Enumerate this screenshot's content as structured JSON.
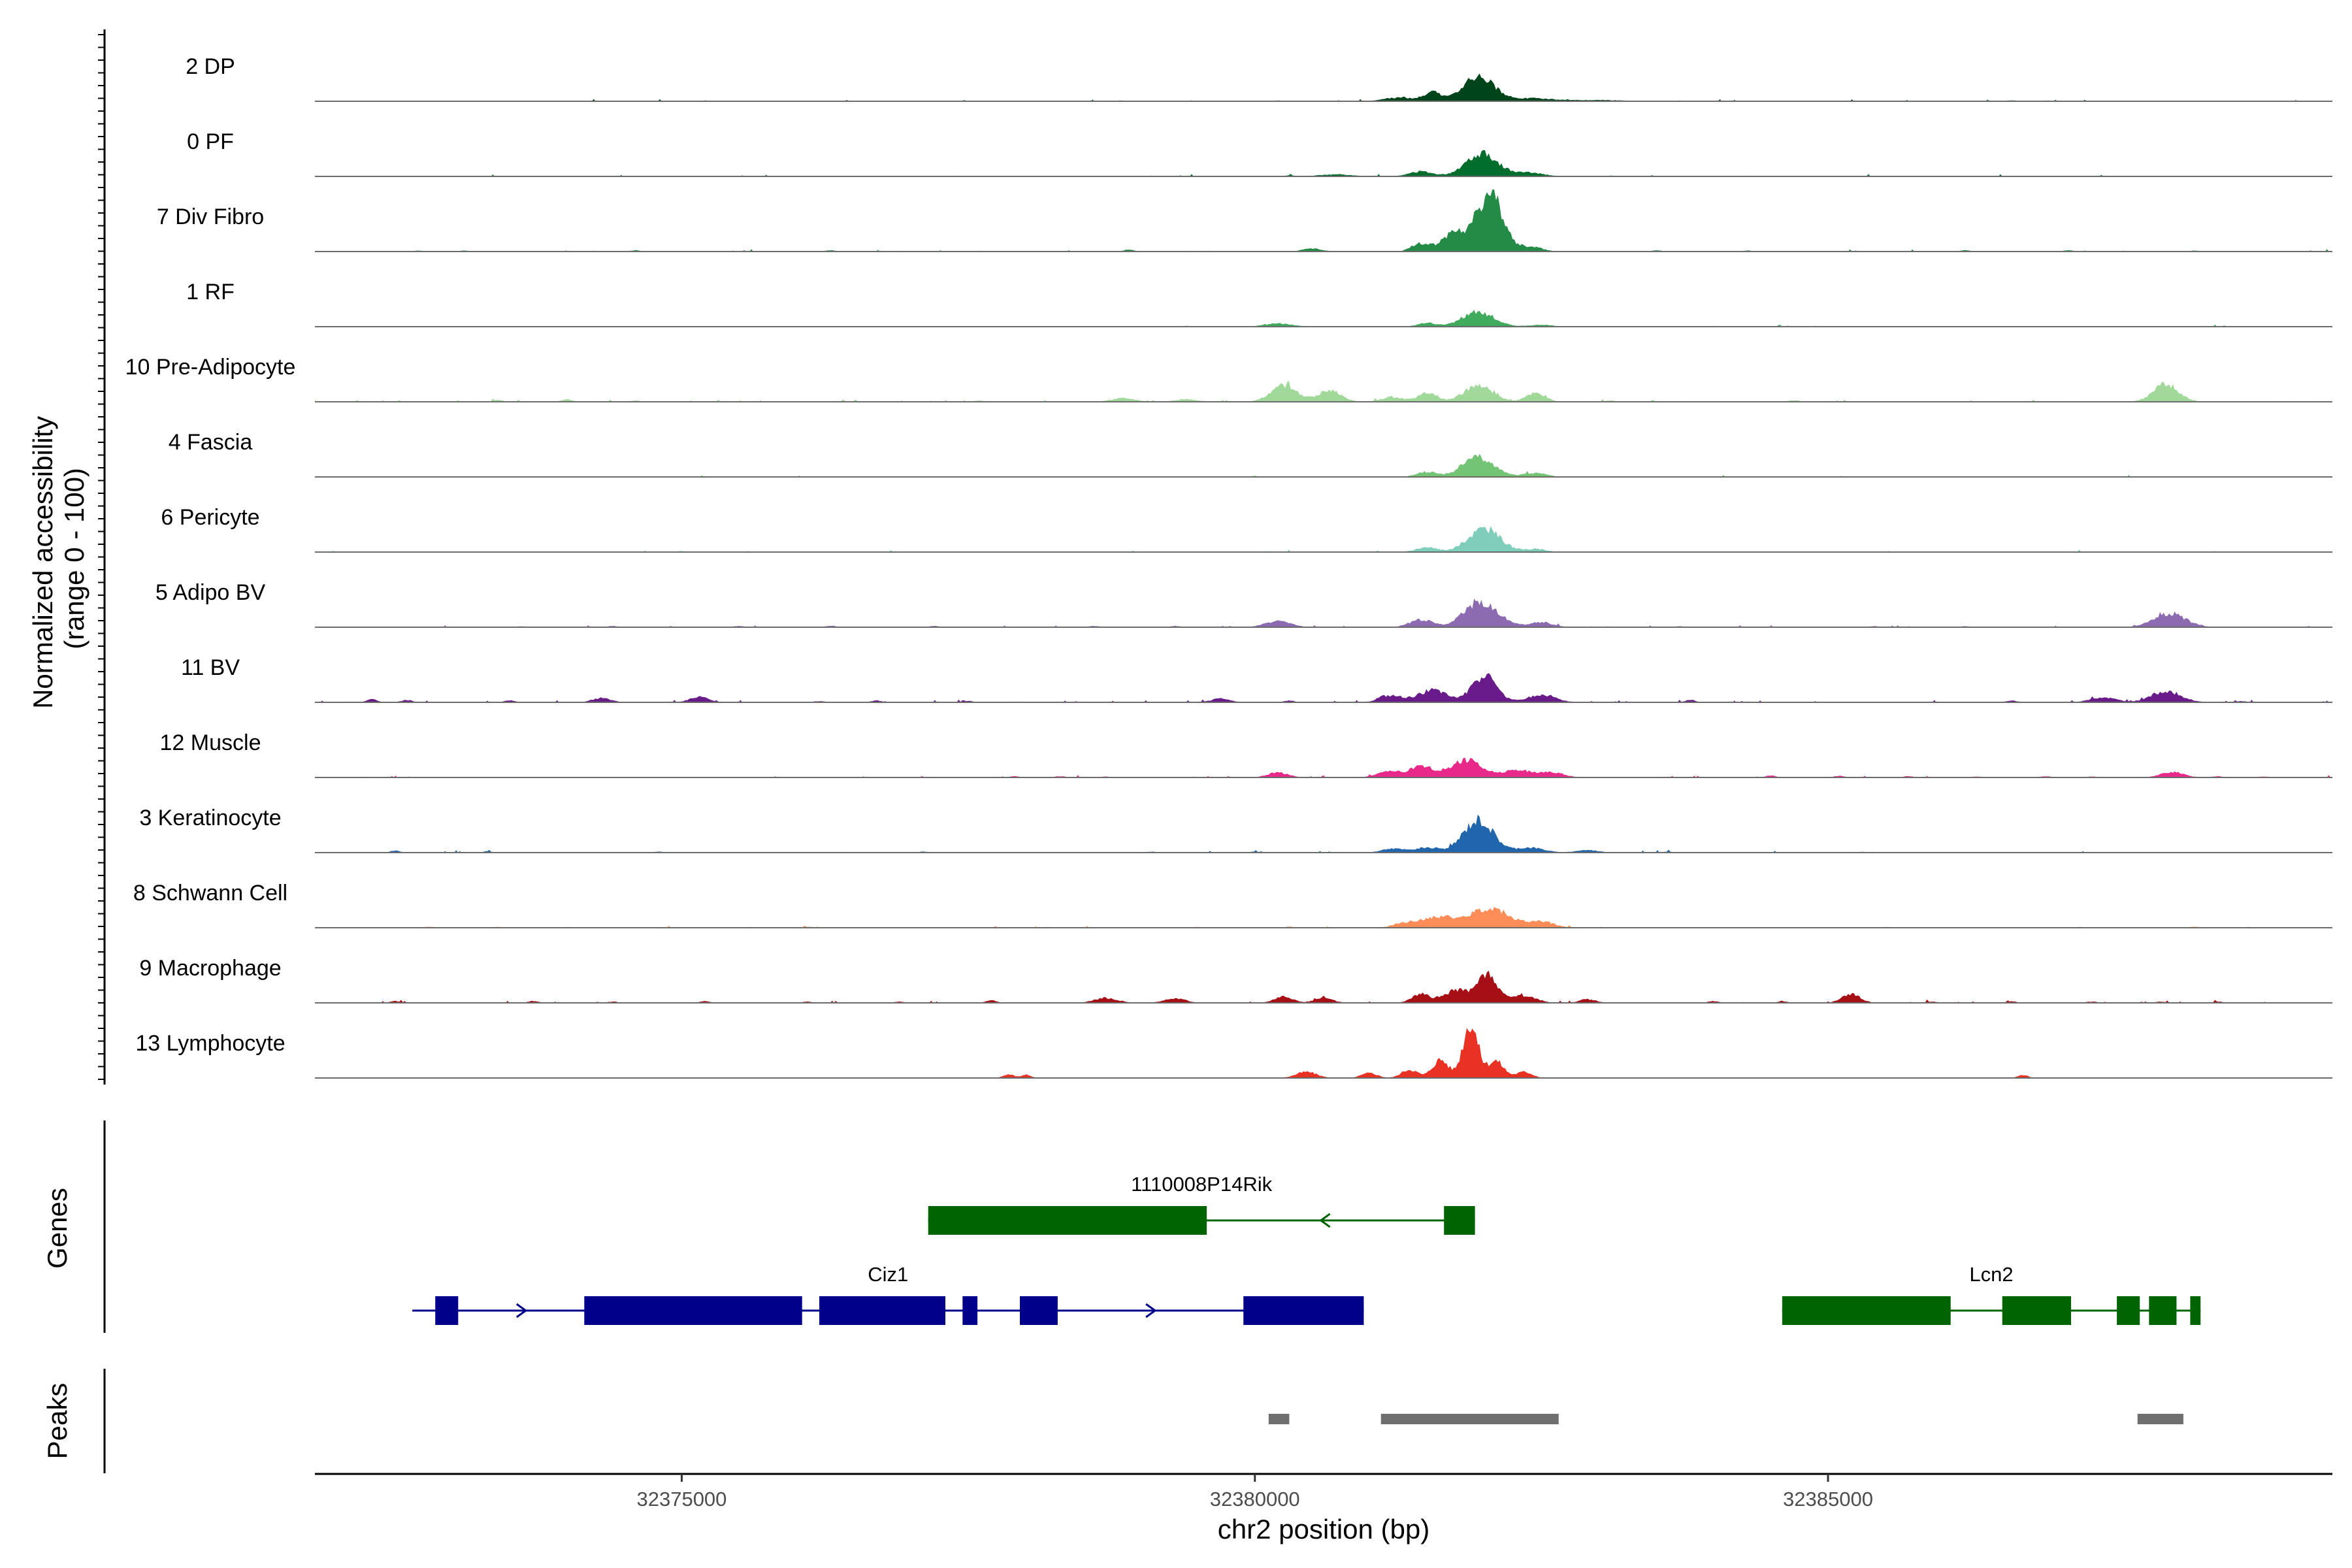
{
  "chart_data": {
    "type": "area",
    "region": {
      "chromosome": "chr2",
      "start": 32371800,
      "end": 32389400
    },
    "y_axis_title_line1": "Normalized accessibility",
    "y_axis_title_line2": "(range 0 - 100)",
    "x_axis_title": "chr2 position (bp)",
    "x_ticks": [
      {
        "value": 32375000,
        "label": "32375000"
      },
      {
        "value": 32380000,
        "label": "32380000"
      },
      {
        "value": 32385000,
        "label": "32385000"
      }
    ],
    "tracks": [
      {
        "name": "2 DP",
        "color": "#00441b",
        "bg": 0.02,
        "seed": 11,
        "peaks": [
          [
            32381950,
            42,
            130
          ],
          [
            32381550,
            14,
            80
          ],
          [
            32381250,
            6,
            120
          ],
          [
            32382400,
            5,
            200
          ],
          [
            32383000,
            2,
            200
          ]
        ],
        "blips": [
          [
            32380200,
            1.2
          ],
          [
            32384700,
            1.0
          ],
          [
            32386600,
            1.5
          ],
          [
            32386000,
            1.0
          ]
        ]
      },
      {
        "name": "0 PF",
        "color": "#006d2c",
        "bg": 0.015,
        "seed": 23,
        "peaks": [
          [
            32381980,
            38,
            140
          ],
          [
            32381450,
            8,
            100
          ],
          [
            32382400,
            6,
            120
          ],
          [
            32380700,
            3,
            150
          ]
        ],
        "blips": [
          [
            32380300,
            1.5
          ],
          [
            32383100,
            1.2
          ],
          [
            32384300,
            1.0
          ]
        ]
      },
      {
        "name": "7 Div Fibro",
        "color": "#238b45",
        "bg": 0.03,
        "seed": 37,
        "peaks": [
          [
            32382050,
            95,
            110
          ],
          [
            32381750,
            30,
            110
          ],
          [
            32381450,
            12,
            80
          ],
          [
            32382400,
            8,
            100
          ],
          [
            32380500,
            5,
            80
          ]
        ],
        "blips": [
          [
            32372700,
            1.5
          ],
          [
            32373100,
            1.5
          ],
          [
            32374600,
            2.0
          ],
          [
            32376300,
            2.0
          ],
          [
            32378900,
            3.0
          ],
          [
            32383500,
            2.0
          ],
          [
            32384300,
            1.5
          ],
          [
            32386200,
            2.0
          ],
          [
            32387100,
            2.0
          ],
          [
            32388200,
            1.5
          ]
        ]
      },
      {
        "name": "1 RF",
        "color": "#41ab5d",
        "bg": 0.01,
        "seed": 41,
        "peaks": [
          [
            32381950,
            24,
            140
          ],
          [
            32381500,
            6,
            80
          ],
          [
            32380200,
            5,
            120
          ],
          [
            32382500,
            3,
            100
          ]
        ],
        "blips": [
          [
            32379400,
            1.2
          ],
          [
            32384300,
            1.0
          ],
          [
            32386600,
            1.0
          ]
        ]
      },
      {
        "name": "10 Pre-Adipocyte",
        "color": "#a1d99b",
        "bg": 0.04,
        "seed": 53,
        "peaks": [
          [
            32380250,
            28,
            110
          ],
          [
            32380650,
            18,
            100
          ],
          [
            32381500,
            14,
            80
          ],
          [
            32381950,
            25,
            130
          ],
          [
            32382450,
            15,
            80
          ],
          [
            32381200,
            8,
            90
          ],
          [
            32387950,
            28,
            110
          ],
          [
            32378850,
            6,
            100
          ],
          [
            32379400,
            4,
            100
          ]
        ],
        "blips": [
          [
            32372500,
            1.0
          ],
          [
            32373400,
            3.0
          ],
          [
            32374000,
            4.0
          ],
          [
            32374600,
            2.0
          ],
          [
            32376400,
            1.5
          ],
          [
            32377600,
            2.0
          ],
          [
            32383100,
            2.0
          ],
          [
            32384700,
            2.5
          ],
          [
            32386800,
            1.0
          ]
        ]
      },
      {
        "name": "4 Fascia",
        "color": "#74c476",
        "bg": 0.008,
        "seed": 61,
        "peaks": [
          [
            32381950,
            32,
            140
          ],
          [
            32381500,
            8,
            90
          ],
          [
            32382450,
            6,
            100
          ]
        ],
        "blips": [
          [
            32380000,
            1.5
          ],
          [
            32384200,
            1.0
          ]
        ]
      },
      {
        "name": "6 Pericyte",
        "color": "#7fcdbb",
        "bg": 0.008,
        "seed": 67,
        "peaks": [
          [
            32382000,
            38,
            140
          ],
          [
            32381500,
            8,
            90
          ],
          [
            32382450,
            5,
            90
          ]
        ],
        "blips": [
          [
            32375000,
            1.5
          ],
          [
            32380100,
            1.2
          ],
          [
            32386200,
            1.0
          ]
        ]
      },
      {
        "name": "5 Adipo BV",
        "color": "#8c6bb1",
        "bg": 0.02,
        "seed": 71,
        "peaks": [
          [
            32381980,
            40,
            150
          ],
          [
            32381450,
            12,
            100
          ],
          [
            32382500,
            8,
            100
          ],
          [
            32380200,
            10,
            110
          ],
          [
            32387980,
            22,
            140
          ]
        ],
        "blips": [
          [
            32373600,
            1.5
          ],
          [
            32374400,
            2.0
          ],
          [
            32375500,
            2.0
          ],
          [
            32376300,
            2.5
          ],
          [
            32377200,
            2.0
          ],
          [
            32378600,
            2.0
          ],
          [
            32379300,
            2.0
          ],
          [
            32383700,
            1.5
          ],
          [
            32385400,
            1.5
          ],
          [
            32386200,
            1.5
          ]
        ]
      },
      {
        "name": "11 BV",
        "color": "#6a1b8a",
        "bg": 0.05,
        "seed": 83,
        "peaks": [
          [
            32382000,
            42,
            110
          ],
          [
            32381550,
            20,
            120
          ],
          [
            32381200,
            10,
            100
          ],
          [
            32382500,
            12,
            120
          ],
          [
            32387950,
            18,
            130
          ],
          [
            32387400,
            8,
            110
          ],
          [
            32379700,
            6,
            80
          ],
          [
            32374300,
            7,
            80
          ],
          [
            32375150,
            9,
            80
          ]
        ],
        "blips": [
          [
            32372300,
            5.0
          ],
          [
            32372600,
            4.0
          ],
          [
            32373500,
            3.0
          ],
          [
            32376200,
            2.0
          ],
          [
            32376700,
            3.0
          ],
          [
            32377500,
            2.0
          ],
          [
            32380300,
            3.0
          ],
          [
            32381100,
            3.0
          ],
          [
            32383800,
            4.0
          ],
          [
            32386600,
            3.0
          ],
          [
            32388600,
            2.0
          ]
        ]
      },
      {
        "name": "12 Muscle",
        "color": "#e7298a",
        "bg": 0.015,
        "seed": 97,
        "peaks": [
          [
            32381850,
            28,
            140
          ],
          [
            32381450,
            18,
            110
          ],
          [
            32381150,
            10,
            90
          ],
          [
            32382300,
            12,
            120
          ],
          [
            32382600,
            8,
            100
          ],
          [
            32380200,
            8,
            90
          ],
          [
            32388000,
            9,
            100
          ]
        ],
        "blips": [
          [
            32377900,
            2.0
          ],
          [
            32378300,
            2.0
          ],
          [
            32378700,
            1.5
          ],
          [
            32384500,
            3.0
          ],
          [
            32385100,
            2.5
          ],
          [
            32385700,
            2.0
          ],
          [
            32386300,
            1.5
          ],
          [
            32386900,
            2.0
          ],
          [
            32387300,
            1.5
          ],
          [
            32388400,
            2.0
          ],
          [
            32388800,
            1.5
          ]
        ]
      },
      {
        "name": "3 Keratinocyte",
        "color": "#2166ac",
        "bg": 0.015,
        "seed": 101,
        "peaks": [
          [
            32381950,
            52,
            130
          ],
          [
            32381500,
            8,
            110
          ],
          [
            32381200,
            6,
            100
          ],
          [
            32382400,
            8,
            120
          ],
          [
            32382900,
            4,
            100
          ]
        ],
        "blips": [
          [
            32372500,
            3.0
          ],
          [
            32373300,
            2.0
          ],
          [
            32374800,
            1.5
          ],
          [
            32377100,
            1.5
          ],
          [
            32379100,
            1.5
          ],
          [
            32380000,
            1.5
          ],
          [
            32383600,
            1.5
          ],
          [
            32385300,
            1.2
          ],
          [
            32386400,
            1.0
          ]
        ]
      },
      {
        "name": "8 Schwann Cell",
        "color": "#fc8d59",
        "bg": 0.012,
        "seed": 109,
        "peaks": [
          [
            32382050,
            32,
            170
          ],
          [
            32381600,
            18,
            130
          ],
          [
            32381300,
            8,
            90
          ],
          [
            32382500,
            10,
            110
          ]
        ],
        "blips": [
          [
            32372800,
            1.5
          ],
          [
            32373400,
            1.5
          ],
          [
            32374000,
            1.2
          ],
          [
            32375600,
            1.2
          ],
          [
            32376100,
            1.5
          ],
          [
            32377300,
            1.0
          ],
          [
            32378200,
            1.2
          ],
          [
            32379500,
            1.2
          ],
          [
            32380300,
            1.5
          ],
          [
            32384000,
            1.0
          ],
          [
            32385500,
            1.2
          ],
          [
            32386500,
            1.0
          ],
          [
            32387200,
            1.2
          ],
          [
            32388200,
            1.5
          ]
        ]
      },
      {
        "name": "9 Macrophage",
        "color": "#a50f15",
        "bg": 0.035,
        "seed": 113,
        "peaks": [
          [
            32382020,
            48,
            90
          ],
          [
            32381750,
            20,
            100
          ],
          [
            32381450,
            14,
            80
          ],
          [
            32382350,
            12,
            100
          ],
          [
            32380250,
            10,
            80
          ],
          [
            32380600,
            8,
            80
          ],
          [
            32385200,
            14,
            80
          ],
          [
            32378700,
            8,
            100
          ],
          [
            32379300,
            7,
            90
          ],
          [
            32382900,
            6,
            70
          ]
        ],
        "blips": [
          [
            32372500,
            3.0
          ],
          [
            32373700,
            3.0
          ],
          [
            32374400,
            2.0
          ],
          [
            32375200,
            2.5
          ],
          [
            32376100,
            2.0
          ],
          [
            32376900,
            2.0
          ],
          [
            32377700,
            4.0
          ],
          [
            32384000,
            3.0
          ],
          [
            32384600,
            2.5
          ],
          [
            32385900,
            2.0
          ],
          [
            32386600,
            2.5
          ],
          [
            32387300,
            2.0
          ],
          [
            32387900,
            2.0
          ],
          [
            32388400,
            2.0
          ]
        ]
      },
      {
        "name": "13 Lymphocyte",
        "color": "#e83224",
        "bg": 0.0,
        "seed": 127,
        "peaks": [
          [
            32381880,
            90,
            65
          ],
          [
            32381620,
            30,
            70
          ],
          [
            32382100,
            28,
            70
          ],
          [
            32381350,
            14,
            70
          ],
          [
            32380450,
            10,
            90
          ],
          [
            32382350,
            10,
            70
          ],
          [
            32381000,
            8,
            70
          ]
        ],
        "blips": [
          [
            32377850,
            6.0
          ],
          [
            32378000,
            5.0
          ],
          [
            32386700,
            5.0
          ]
        ]
      }
    ],
    "genes": [
      {
        "name": "1110008P14Rik",
        "color": "#006400",
        "row": 1,
        "strand": "-",
        "start": 32377150,
        "end": 32381920,
        "exons": [
          [
            32377150,
            32379580
          ],
          [
            32381650,
            32381920
          ]
        ]
      },
      {
        "name": "Ciz1",
        "color": "#00008b",
        "row": 2,
        "strand": "+",
        "start": 32372650,
        "end": 32380950,
        "exons": [
          [
            32372850,
            32373050
          ],
          [
            32374150,
            32376050
          ],
          [
            32376200,
            32377300
          ],
          [
            32377450,
            32377580
          ],
          [
            32377950,
            32378280
          ],
          [
            32379900,
            32380950
          ]
        ]
      },
      {
        "name": "Lcn2",
        "color": "#006400",
        "row": 2,
        "strand": "+",
        "start": 32384600,
        "end": 32388250,
        "exons": [
          [
            32384600,
            32386070
          ],
          [
            32386520,
            32387120
          ],
          [
            32387520,
            32387720
          ],
          [
            32387800,
            32388040
          ],
          [
            32388160,
            32388250
          ]
        ]
      }
    ],
    "peaks_track": [
      [
        32380120,
        32380300
      ],
      [
        32381100,
        32382650
      ],
      [
        32387700,
        32388100
      ]
    ],
    "panel_titles": {
      "genes": "Genes",
      "peaks": "Peaks"
    }
  }
}
